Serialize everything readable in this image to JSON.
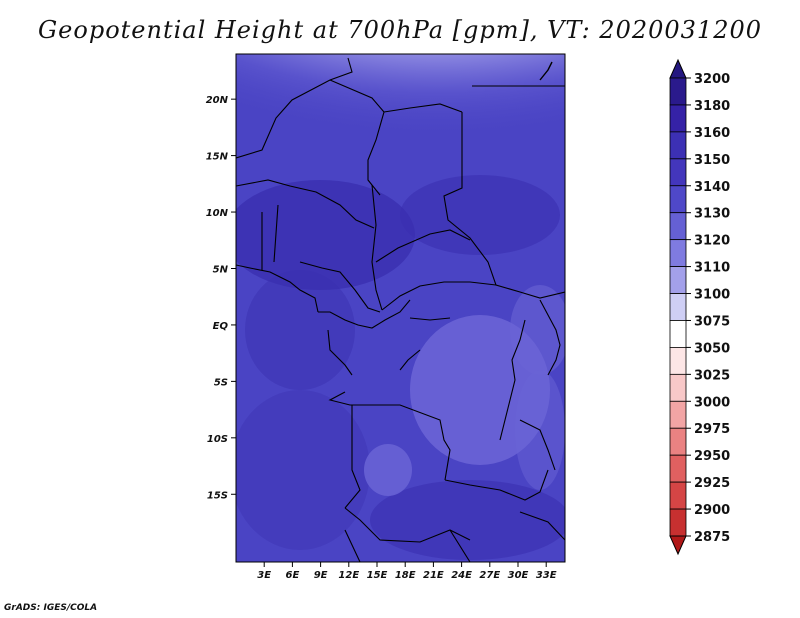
{
  "title": "Geopotential Height at 700hPa [gpm], VT: 2020031200",
  "credit": "GrADS: IGES/COLA",
  "map": {
    "variable": "Geopotential Height",
    "level": "700hPa",
    "units": "gpm",
    "valid_time": "2020031200",
    "lon_ticks": [
      "3E",
      "6E",
      "9E",
      "12E",
      "15E",
      "18E",
      "21E",
      "24E",
      "27E",
      "30E",
      "33E"
    ],
    "lat_ticks": [
      "20N",
      "15N",
      "10N",
      "5N",
      "EQ",
      "5S",
      "10S",
      "15S"
    ]
  },
  "colorbar": {
    "levels": [
      "3200",
      "3180",
      "3160",
      "3150",
      "3140",
      "3130",
      "3120",
      "3110",
      "3100",
      "3075",
      "3050",
      "3025",
      "3000",
      "2975",
      "2950",
      "2925",
      "2900",
      "2875"
    ],
    "colors": [
      "#2a1a8c",
      "#3522a6",
      "#3c30b4",
      "#4336bc",
      "#4f48c8",
      "#6560d4",
      "#7f7be0",
      "#a3a0ea",
      "#cfcff5",
      "#ffffff",
      "#fde6e6",
      "#f8c8c8",
      "#f2a5a5",
      "#ea8282",
      "#e06060",
      "#d54545",
      "#c73030",
      "#b81f1f"
    ],
    "top_arrow_color": "#241780",
    "bottom_arrow_color": "#b01818"
  },
  "palette": {
    "ridge_light": "#fdd3d3",
    "ridge_mid": "#f3aaaa",
    "ridge_core": "#ea8f8f",
    "field_base": "#4a44c4",
    "field_dark": "#3a2fb0",
    "field_light": "#6a64d6"
  }
}
